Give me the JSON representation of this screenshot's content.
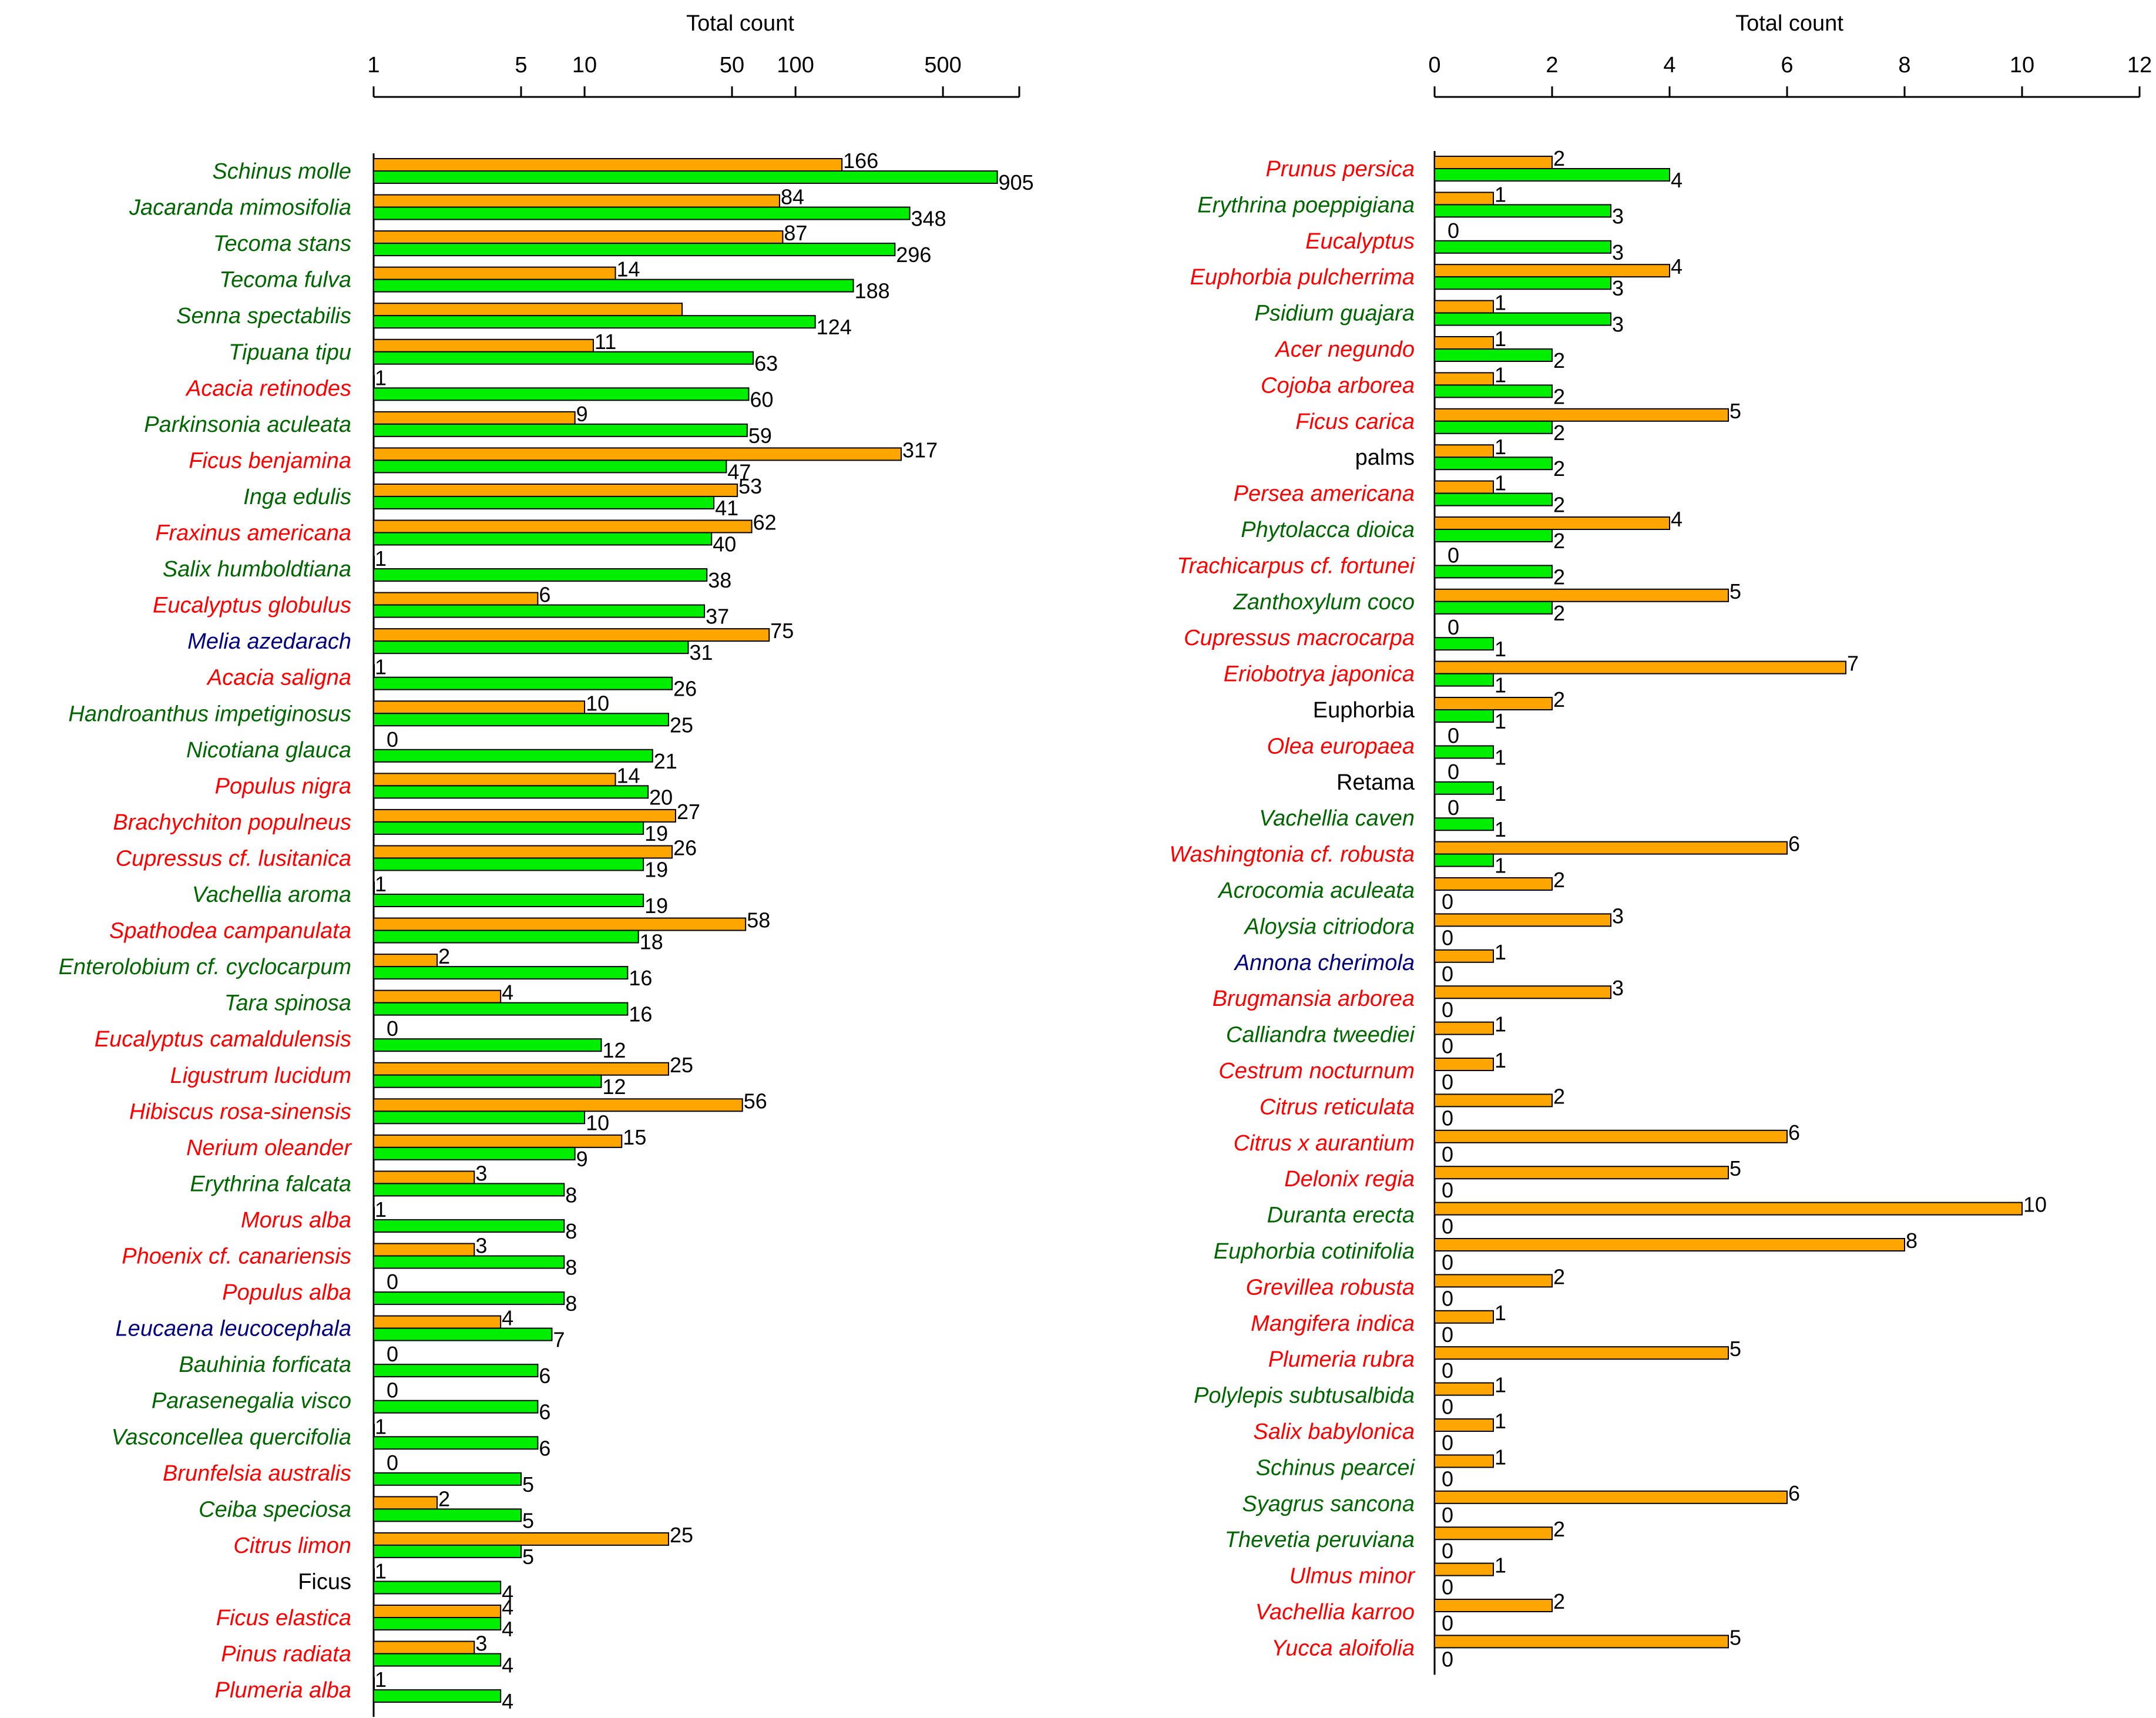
{
  "colors": {
    "bar_orange": "#ffa500",
    "bar_green": "#00ee00",
    "label_green": "#006600",
    "label_red": "#ff0000",
    "label_blue": "#000080",
    "label_black": "#000000"
  },
  "chart_data": [
    {
      "type": "bar",
      "orientation": "horizontal",
      "xscale": "log",
      "title": "",
      "xlabel": "Total count",
      "ylabel": "",
      "xlim": [
        1,
        1150
      ],
      "xticks": [
        1,
        5,
        10,
        50,
        100,
        500
      ],
      "series": [
        {
          "name": "orange",
          "color": "#ffa500"
        },
        {
          "name": "green",
          "color": "#00ee00"
        }
      ],
      "rows": [
        {
          "label": "Schinus molle",
          "origin": "green",
          "orange": 166,
          "green": 905
        },
        {
          "label": "Jacaranda mimosifolia",
          "origin": "green",
          "orange": 84,
          "green": 348
        },
        {
          "label": "Tecoma stans",
          "origin": "green",
          "orange": 87,
          "green": 296
        },
        {
          "label": "Tecoma fulva",
          "origin": "green",
          "orange": 14,
          "green": 188
        },
        {
          "label": "Senna spectabilis",
          "origin": "green",
          "orange": 29,
          "orange_label": false,
          "green": 124
        },
        {
          "label": "Tipuana tipu",
          "origin": "green",
          "orange": 11,
          "green": 63
        },
        {
          "label": "Acacia retinodes",
          "origin": "red",
          "orange": 1,
          "green": 60
        },
        {
          "label": "Parkinsonia aculeata",
          "origin": "green",
          "orange": 9,
          "green": 59
        },
        {
          "label": "Ficus benjamina",
          "origin": "red",
          "orange": 317,
          "green": 47
        },
        {
          "label": "Inga edulis",
          "origin": "green",
          "orange": 53,
          "green": 41
        },
        {
          "label": "Fraxinus americana",
          "origin": "red",
          "orange": 62,
          "green": 40
        },
        {
          "label": "Salix humboldtiana",
          "origin": "green",
          "orange": 1,
          "green": 38
        },
        {
          "label": "Eucalyptus globulus",
          "origin": "red",
          "orange": 6,
          "green": 37
        },
        {
          "label": "Melia azedarach",
          "origin": "blue",
          "orange": 75,
          "green": 31
        },
        {
          "label": "Acacia saligna",
          "origin": "red",
          "orange": 1,
          "green": 26
        },
        {
          "label": "Handroanthus impetiginosus",
          "origin": "green",
          "orange": 10,
          "green": 25
        },
        {
          "label": "Nicotiana glauca",
          "origin": "green",
          "orange": 0,
          "green": 21
        },
        {
          "label": "Populus nigra",
          "origin": "red",
          "orange": 14,
          "green": 20
        },
        {
          "label": "Brachychiton populneus",
          "origin": "red",
          "orange": 27,
          "green": 19
        },
        {
          "label": "Cupressus cf. lusitanica",
          "origin": "red",
          "orange": 26,
          "green": 19
        },
        {
          "label": "Vachellia aroma",
          "origin": "green",
          "orange": 1,
          "green": 19
        },
        {
          "label": "Spathodea campanulata",
          "origin": "red",
          "orange": 58,
          "green": 18
        },
        {
          "label": "Enterolobium cf. cyclocarpum",
          "origin": "green",
          "orange": 2,
          "green": 16
        },
        {
          "label": "Tara spinosa",
          "origin": "green",
          "orange": 4,
          "green": 16
        },
        {
          "label": "Eucalyptus camaldulensis",
          "origin": "red",
          "orange": 0,
          "green": 12
        },
        {
          "label": "Ligustrum lucidum",
          "origin": "red",
          "orange": 25,
          "green": 12
        },
        {
          "label": "Hibiscus rosa-sinensis",
          "origin": "red",
          "orange": 56,
          "green": 10
        },
        {
          "label": "Nerium oleander",
          "origin": "red",
          "orange": 15,
          "green": 9
        },
        {
          "label": "Erythrina falcata",
          "origin": "green",
          "orange": 3,
          "green": 8
        },
        {
          "label": "Morus alba",
          "origin": "red",
          "orange": 1,
          "green": 8
        },
        {
          "label": "Phoenix cf. canariensis",
          "origin": "red",
          "orange": 3,
          "green": 8
        },
        {
          "label": "Populus alba",
          "origin": "red",
          "orange": 0,
          "green": 8
        },
        {
          "label": "Leucaena leucocephala",
          "origin": "blue",
          "orange": 4,
          "green": 7
        },
        {
          "label": "Bauhinia forficata",
          "origin": "green",
          "orange": 0,
          "green": 6
        },
        {
          "label": "Parasenegalia visco",
          "origin": "green",
          "orange": 0,
          "green": 6
        },
        {
          "label": "Vasconcellea quercifolia",
          "origin": "green",
          "orange": 1,
          "green": 6
        },
        {
          "label": "Brunfelsia australis",
          "origin": "red",
          "orange": 0,
          "green": 5
        },
        {
          "label": "Ceiba speciosa",
          "origin": "green",
          "orange": 2,
          "green": 5
        },
        {
          "label": "Citrus limon",
          "origin": "red",
          "orange": 25,
          "green": 5
        },
        {
          "label": "Ficus",
          "origin": "black",
          "orange": 1,
          "green": 4
        },
        {
          "label": "Ficus elastica",
          "origin": "red",
          "orange": 4,
          "green": 4
        },
        {
          "label": "Pinus radiata",
          "origin": "red",
          "orange": 3,
          "green": 4
        },
        {
          "label": "Plumeria alba",
          "origin": "red",
          "orange": 1,
          "green": 4
        }
      ]
    },
    {
      "type": "bar",
      "orientation": "horizontal",
      "xscale": "linear",
      "title": "",
      "xlabel": "Total count",
      "ylabel": "",
      "xlim": [
        0,
        12
      ],
      "xticks": [
        0,
        2,
        4,
        6,
        8,
        10,
        12
      ],
      "series": [
        {
          "name": "orange",
          "color": "#ffa500"
        },
        {
          "name": "green",
          "color": "#00ee00"
        }
      ],
      "rows": [
        {
          "label": "Prunus persica",
          "origin": "red",
          "orange": 2,
          "green": 4
        },
        {
          "label": "Erythrina poeppigiana",
          "origin": "green",
          "orange": 1,
          "green": 3
        },
        {
          "label": "Eucalyptus",
          "origin": "red",
          "orange": 0,
          "green": 3
        },
        {
          "label": "Euphorbia pulcherrima",
          "origin": "red",
          "orange": 4,
          "green": 3
        },
        {
          "label": "Psidium guajara",
          "origin": "green",
          "orange": 1,
          "green": 3
        },
        {
          "label": "Acer negundo",
          "origin": "red",
          "orange": 1,
          "green": 2
        },
        {
          "label": "Cojoba arborea",
          "origin": "red",
          "orange": 1,
          "green": 2
        },
        {
          "label": "Ficus carica",
          "origin": "red",
          "orange": 5,
          "green": 2
        },
        {
          "label": "palms",
          "origin": "black",
          "orange": 1,
          "green": 2
        },
        {
          "label": "Persea americana",
          "origin": "red",
          "orange": 1,
          "green": 2
        },
        {
          "label": "Phytolacca dioica",
          "origin": "green",
          "orange": 4,
          "green": 2
        },
        {
          "label": "Trachicarpus cf. fortunei",
          "origin": "red",
          "orange": 0,
          "green": 2
        },
        {
          "label": "Zanthoxylum coco",
          "origin": "green",
          "orange": 5,
          "green": 2
        },
        {
          "label": "Cupressus macrocarpa",
          "origin": "red",
          "orange": 0,
          "green": 1
        },
        {
          "label": "Eriobotrya japonica",
          "origin": "red",
          "orange": 7,
          "green": 1
        },
        {
          "label": "Euphorbia",
          "origin": "black",
          "orange": 2,
          "green": 1
        },
        {
          "label": "Olea europaea",
          "origin": "red",
          "orange": 0,
          "green": 1
        },
        {
          "label": "Retama",
          "origin": "black",
          "orange": 0,
          "green": 1
        },
        {
          "label": "Vachellia caven",
          "origin": "green",
          "orange": 0,
          "green": 1
        },
        {
          "label": "Washingtonia cf. robusta",
          "origin": "red",
          "orange": 6,
          "green": 1
        },
        {
          "label": "Acrocomia aculeata",
          "origin": "green",
          "orange": 2,
          "green": 0
        },
        {
          "label": "Aloysia citriodora",
          "origin": "green",
          "orange": 3,
          "green": 0
        },
        {
          "label": "Annona cherimola",
          "origin": "blue",
          "orange": 1,
          "green": 0
        },
        {
          "label": "Brugmansia arborea",
          "origin": "red",
          "orange": 3,
          "green": 0
        },
        {
          "label": "Calliandra tweediei",
          "origin": "green",
          "orange": 1,
          "green": 0
        },
        {
          "label": "Cestrum nocturnum",
          "origin": "red",
          "orange": 1,
          "green": 0
        },
        {
          "label": "Citrus reticulata",
          "origin": "red",
          "orange": 2,
          "green": 0
        },
        {
          "label": "Citrus x aurantium",
          "origin": "red",
          "orange": 6,
          "green": 0
        },
        {
          "label": "Delonix regia",
          "origin": "red",
          "orange": 5,
          "green": 0
        },
        {
          "label": "Duranta erecta",
          "origin": "green",
          "orange": 10,
          "green": 0
        },
        {
          "label": "Euphorbia cotinifolia",
          "origin": "green",
          "orange": 8,
          "green": 0
        },
        {
          "label": "Grevillea robusta",
          "origin": "red",
          "orange": 2,
          "green": 0
        },
        {
          "label": "Mangifera indica",
          "origin": "red",
          "orange": 1,
          "green": 0
        },
        {
          "label": "Plumeria rubra",
          "origin": "red",
          "orange": 5,
          "green": 0
        },
        {
          "label": "Polylepis subtusalbida",
          "origin": "green",
          "orange": 1,
          "green": 0
        },
        {
          "label": "Salix babylonica",
          "origin": "red",
          "orange": 1,
          "green": 0
        },
        {
          "label": "Schinus pearcei",
          "origin": "green",
          "orange": 1,
          "green": 0
        },
        {
          "label": "Syagrus sancona",
          "origin": "green",
          "orange": 6,
          "green": 0
        },
        {
          "label": "Thevetia peruviana",
          "origin": "green",
          "orange": 2,
          "green": 0
        },
        {
          "label": "Ulmus minor",
          "origin": "red",
          "orange": 1,
          "green": 0
        },
        {
          "label": "Vachellia karroo",
          "origin": "red",
          "orange": 2,
          "green": 0
        },
        {
          "label": "Yucca aloifolia",
          "origin": "red",
          "orange": 5,
          "green": 0
        }
      ]
    }
  ]
}
